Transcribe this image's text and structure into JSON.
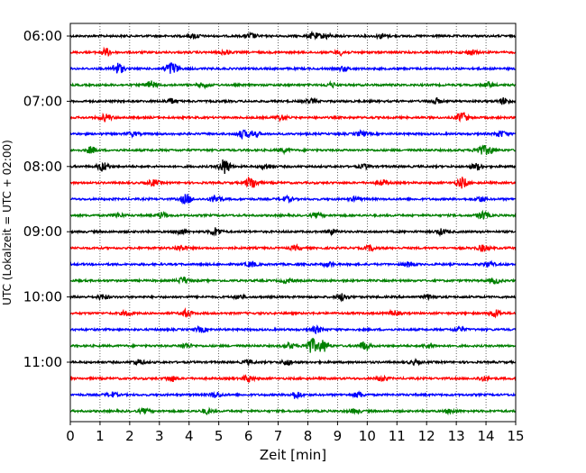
{
  "chart_data": {
    "type": "line",
    "xlabel": "Zeit  [min]",
    "ylabel": "UTC (Lokalzeit = UTC + 02:00)",
    "xlim": [
      0,
      15
    ],
    "x_ticks": [
      "0",
      "1",
      "2",
      "3",
      "4",
      "5",
      "6",
      "7",
      "8",
      "9",
      "10",
      "11",
      "12",
      "13",
      "14",
      "15"
    ],
    "y_ticks": [
      "06:00",
      "07:00",
      "08:00",
      "09:00",
      "10:00",
      "11:00"
    ],
    "trace_interval_min": 15,
    "grid": "vertical dotted",
    "colors": [
      "#000000",
      "#ff0000",
      "#0000ff",
      "#008000"
    ],
    "traces": [
      {
        "start": "06:00",
        "color": "#000000",
        "events": [
          [
            4.2,
            1.0
          ],
          [
            6.1,
            1.2
          ],
          [
            8.2,
            1.5
          ],
          [
            8.6,
            1.2
          ],
          [
            10.5,
            1.1
          ]
        ]
      },
      {
        "start": "06:15",
        "color": "#ff0000",
        "events": [
          [
            1.2,
            1.8
          ],
          [
            5.2,
            1.0
          ],
          [
            9.1,
            1.2
          ],
          [
            13.5,
            1.2
          ]
        ]
      },
      {
        "start": "06:30",
        "color": "#0000ff",
        "events": [
          [
            1.6,
            3.0
          ],
          [
            3.3,
            1.8
          ],
          [
            3.5,
            2.0
          ],
          [
            9.2,
            1.0
          ]
        ]
      },
      {
        "start": "06:45",
        "color": "#008000",
        "events": [
          [
            2.7,
            1.8
          ],
          [
            4.5,
            1.0
          ],
          [
            8.8,
            1.0
          ],
          [
            14.1,
            1.2
          ]
        ]
      },
      {
        "start": "07:00",
        "color": "#000000",
        "events": [
          [
            3.4,
            1.2
          ],
          [
            8.1,
            1.0
          ],
          [
            12.3,
            1.3
          ],
          [
            14.6,
            1.6
          ]
        ]
      },
      {
        "start": "07:15",
        "color": "#ff0000",
        "events": [
          [
            1.2,
            1.8
          ],
          [
            7.1,
            1.2
          ],
          [
            13.2,
            2.6
          ]
        ]
      },
      {
        "start": "07:30",
        "color": "#0000ff",
        "events": [
          [
            2.1,
            1.0
          ],
          [
            5.8,
            1.8
          ],
          [
            6.2,
            1.5
          ],
          [
            9.8,
            1.2
          ],
          [
            14.5,
            1.4
          ]
        ]
      },
      {
        "start": "07:45",
        "color": "#008000",
        "events": [
          [
            0.7,
            1.6
          ],
          [
            7.2,
            1.0
          ],
          [
            13.8,
            2.0
          ],
          [
            14.1,
            1.8
          ]
        ]
      },
      {
        "start": "08:00",
        "color": "#000000",
        "events": [
          [
            1.1,
            2.2
          ],
          [
            5.2,
            3.8
          ],
          [
            6.6,
            1.2
          ],
          [
            9.9,
            1.0
          ],
          [
            13.7,
            1.6
          ]
        ]
      },
      {
        "start": "08:15",
        "color": "#ff0000",
        "events": [
          [
            2.8,
            1.4
          ],
          [
            6.1,
            3.2
          ],
          [
            10.5,
            1.3
          ],
          [
            13.2,
            2.6
          ]
        ]
      },
      {
        "start": "08:30",
        "color": "#0000ff",
        "events": [
          [
            3.9,
            2.4
          ],
          [
            4.9,
            2.0
          ],
          [
            7.3,
            1.2
          ],
          [
            9.6,
            1.0
          ],
          [
            13.8,
            1.2
          ]
        ]
      },
      {
        "start": "08:45",
        "color": "#008000",
        "events": [
          [
            1.6,
            1.0
          ],
          [
            3.1,
            1.4
          ],
          [
            8.3,
            1.0
          ],
          [
            13.9,
            2.0
          ]
        ]
      },
      {
        "start": "09:00",
        "color": "#000000",
        "events": [
          [
            3.7,
            1.3
          ],
          [
            4.9,
            2.0
          ],
          [
            8.8,
            1.2
          ],
          [
            12.5,
            1.3
          ]
        ]
      },
      {
        "start": "09:15",
        "color": "#ff0000",
        "events": [
          [
            3.7,
            1.4
          ],
          [
            7.6,
            1.0
          ],
          [
            10.1,
            1.2
          ],
          [
            13.9,
            1.6
          ]
        ]
      },
      {
        "start": "09:30",
        "color": "#0000ff",
        "events": [
          [
            6.1,
            1.2
          ],
          [
            8.7,
            1.0
          ],
          [
            11.4,
            1.1
          ],
          [
            14.1,
            1.2
          ]
        ]
      },
      {
        "start": "09:45",
        "color": "#008000",
        "events": [
          [
            3.8,
            1.6
          ],
          [
            7.3,
            1.0
          ],
          [
            14.3,
            1.3
          ]
        ]
      },
      {
        "start": "10:00",
        "color": "#000000",
        "events": [
          [
            1.1,
            1.2
          ],
          [
            5.7,
            1.0
          ],
          [
            9.2,
            1.8
          ],
          [
            12.1,
            1.1
          ]
        ]
      },
      {
        "start": "10:15",
        "color": "#ff0000",
        "events": [
          [
            1.9,
            1.2
          ],
          [
            3.9,
            1.6
          ],
          [
            10.9,
            1.2
          ],
          [
            14.3,
            1.8
          ]
        ]
      },
      {
        "start": "10:30",
        "color": "#0000ff",
        "events": [
          [
            4.4,
            1.2
          ],
          [
            8.3,
            1.5
          ],
          [
            13.1,
            1.4
          ]
        ]
      },
      {
        "start": "10:45",
        "color": "#008000",
        "events": [
          [
            3.9,
            1.2
          ],
          [
            7.4,
            1.2
          ],
          [
            8.1,
            3.8
          ],
          [
            8.5,
            3.0
          ],
          [
            9.9,
            2.0
          ],
          [
            12.1,
            1.1
          ]
        ]
      },
      {
        "start": "11:00",
        "color": "#000000",
        "events": [
          [
            2.3,
            1.2
          ],
          [
            6.0,
            1.0
          ],
          [
            7.3,
            1.4
          ],
          [
            11.6,
            1.0
          ]
        ]
      },
      {
        "start": "11:15",
        "color": "#ff0000",
        "events": [
          [
            3.4,
            1.3
          ],
          [
            6.0,
            1.6
          ],
          [
            10.5,
            1.2
          ],
          [
            13.9,
            1.0
          ]
        ]
      },
      {
        "start": "11:30",
        "color": "#0000ff",
        "events": [
          [
            1.4,
            1.2
          ],
          [
            4.9,
            1.4
          ],
          [
            7.6,
            1.8
          ],
          [
            9.7,
            1.3
          ]
        ]
      },
      {
        "start": "11:45",
        "color": "#008000",
        "events": [
          [
            2.5,
            1.0
          ],
          [
            4.6,
            1.2
          ],
          [
            9.6,
            1.0
          ],
          [
            12.8,
            1.0
          ]
        ]
      }
    ]
  }
}
